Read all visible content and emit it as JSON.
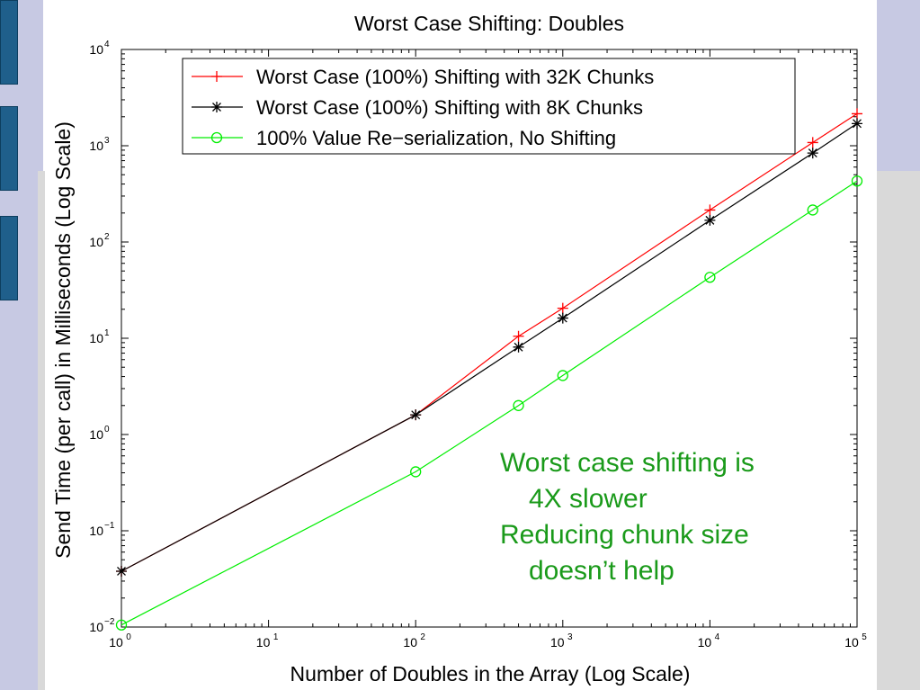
{
  "chart_data": {
    "type": "line",
    "title": "Worst Case Shifting: Doubles",
    "xlabel": "Number of Doubles in the Array (Log Scale)",
    "ylabel": "Send Time (per call) in Milliseconds (Log Scale)",
    "xscale": "log",
    "yscale": "log",
    "xlim": [
      1,
      100000
    ],
    "ylim": [
      0.01,
      10000
    ],
    "x_ticks": [
      {
        "base": "10",
        "exp": "0"
      },
      {
        "base": "10",
        "exp": "1"
      },
      {
        "base": "10",
        "exp": "2"
      },
      {
        "base": "10",
        "exp": "3"
      },
      {
        "base": "10",
        "exp": "4"
      },
      {
        "base": "10",
        "exp": "5"
      }
    ],
    "y_ticks": [
      {
        "base": "10",
        "exp": "−2"
      },
      {
        "base": "10",
        "exp": "−1"
      },
      {
        "base": "10",
        "exp": "0"
      },
      {
        "base": "10",
        "exp": "1"
      },
      {
        "base": "10",
        "exp": "2"
      },
      {
        "base": "10",
        "exp": "3"
      },
      {
        "base": "10",
        "exp": "4"
      }
    ],
    "legend_position": "top-right",
    "grid": false,
    "series": [
      {
        "name": "Worst Case (100%) Shifting with 32K Chunks",
        "color": "#ff0000",
        "marker": "plus",
        "x": [
          1,
          100,
          500,
          1000,
          10000,
          50000,
          100000
        ],
        "y": [
          0.038,
          1.6,
          10.5,
          20.5,
          215,
          1080,
          2150
        ]
      },
      {
        "name": "Worst Case (100%) Shifting with 8K Chunks",
        "color": "#000000",
        "marker": "star",
        "x": [
          1,
          100,
          500,
          1000,
          10000,
          50000,
          100000
        ],
        "y": [
          0.038,
          1.6,
          8.1,
          16.2,
          168,
          840,
          1700
        ]
      },
      {
        "name": "100% Value Re−serialization, No Shifting",
        "color": "#00ee00",
        "marker": "circle",
        "x": [
          1,
          100,
          500,
          1000,
          10000,
          50000,
          100000
        ],
        "y": [
          0.0105,
          0.41,
          2.0,
          4.1,
          43,
          215,
          430
        ]
      }
    ]
  },
  "annotation": {
    "line1": "Worst case shifting is",
    "line2": "4X slower",
    "line3": "Reducing chunk size",
    "line4": "doesn’t help",
    "color": "#1a9a1a"
  }
}
